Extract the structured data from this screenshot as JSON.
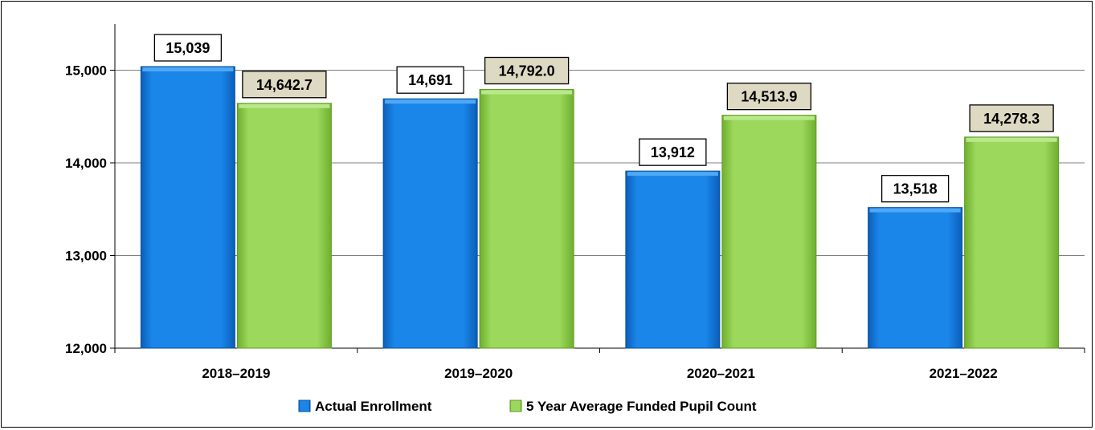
{
  "chart_data": {
    "type": "bar",
    "categories": [
      "2018–2019",
      "2019–2020",
      "2020–2021",
      "2021–2022"
    ],
    "series": [
      {
        "name": "Actual Enrollment",
        "values": [
          15039,
          14691,
          13912,
          13518
        ],
        "labels": [
          "15,039",
          "14,691",
          "13,912",
          "13,518"
        ],
        "color": "#1a82e6",
        "label_box": "#ffffff"
      },
      {
        "name": "5 Year Average Funded Pupil Count",
        "values": [
          14642.7,
          14792.0,
          14513.9,
          14278.3
        ],
        "labels": [
          "14,642.7",
          "14,792.0",
          "14,513.9",
          "14,278.3"
        ],
        "color": "#92d050",
        "label_box": "#ddd9c3"
      }
    ],
    "ylim": [
      12000,
      15500
    ],
    "yticks": [
      12000,
      13000,
      14000,
      15000
    ],
    "ytick_labels": [
      "12,000",
      "13,000",
      "14,000",
      "15,000"
    ],
    "grid": true,
    "legend": "bottom",
    "title": "",
    "xlabel": "",
    "ylabel": ""
  }
}
